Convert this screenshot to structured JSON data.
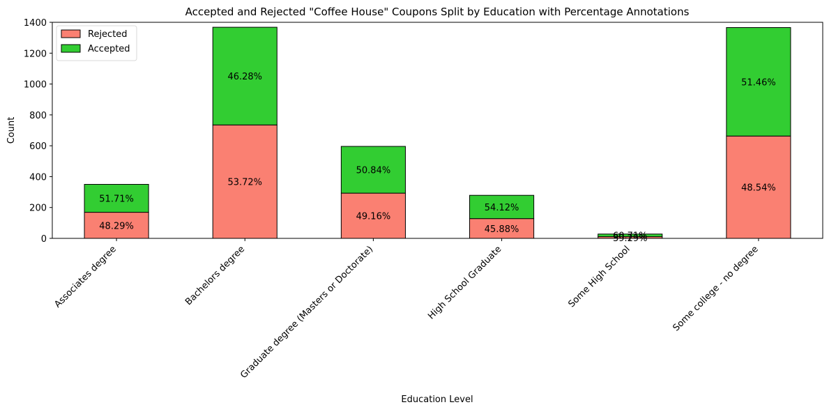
{
  "chart_data": {
    "type": "bar",
    "stacked": true,
    "title": "Accepted and Rejected \"Coffee House\" Coupons Split by Education with Percentage Annotations",
    "xlabel": "Education Level",
    "ylabel": "Count",
    "ylim": [
      0,
      1400
    ],
    "yticks": [
      0,
      200,
      400,
      600,
      800,
      1000,
      1200,
      1400
    ],
    "ytick_labels": [
      "0",
      "200",
      "400",
      "600",
      "800",
      "1000",
      "1200",
      "1400"
    ],
    "grid": false,
    "legend_position": "top-left",
    "categories": [
      "Associates degree",
      "Bachelors degree",
      "Graduate degree (Masters or Doctorate)",
      "High School Graduate",
      "Some High School",
      "Some college - no degree"
    ],
    "series": [
      {
        "name": "Rejected",
        "color": "#fa8072",
        "values": [
          169,
          735,
          293,
          128,
          11,
          663
        ],
        "labels": [
          "48.29%",
          "53.72%",
          "49.16%",
          "45.88%",
          "39.29%",
          "48.54%"
        ]
      },
      {
        "name": "Accepted",
        "color": "#32cd32",
        "values": [
          181,
          633,
          303,
          151,
          17,
          703
        ],
        "labels": [
          "51.71%",
          "46.28%",
          "50.84%",
          "54.12%",
          "60.71%",
          "51.46%"
        ]
      }
    ]
  }
}
